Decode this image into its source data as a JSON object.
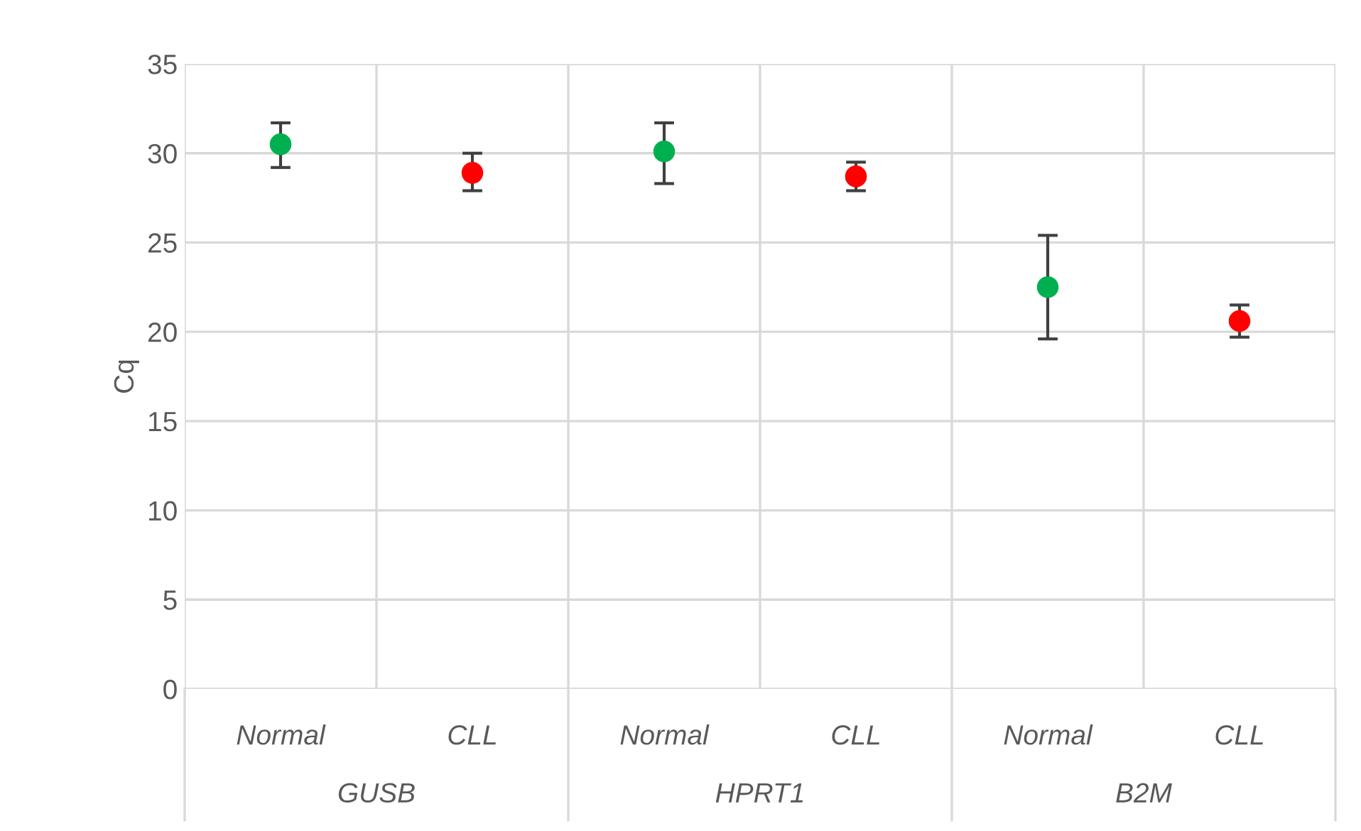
{
  "chart_data": {
    "type": "scatter",
    "ylabel": "Cq",
    "categories": [
      "Normal",
      "CLL",
      "Normal",
      "CLL",
      "Normal",
      "CLL"
    ],
    "values": [
      30.5,
      28.9,
      30.1,
      28.7,
      22.5,
      20.6
    ],
    "errors": [
      [
        29.2,
        31.7
      ],
      [
        27.9,
        30.0
      ],
      [
        28.3,
        31.7
      ],
      [
        27.9,
        29.5
      ],
      [
        19.6,
        25.4
      ],
      [
        19.7,
        21.5
      ]
    ],
    "colors": [
      "#00b050",
      "#ff0000",
      "#00b050",
      "#ff0000",
      "#00b050",
      "#ff0000"
    ],
    "annotations": [
      "GUSB",
      "HPRT1",
      "B2M"
    ],
    "ylim": [
      0,
      35
    ],
    "yticks": [
      0,
      5,
      10,
      15,
      20,
      25,
      30,
      35
    ],
    "grid": true,
    "marker": "circle"
  }
}
